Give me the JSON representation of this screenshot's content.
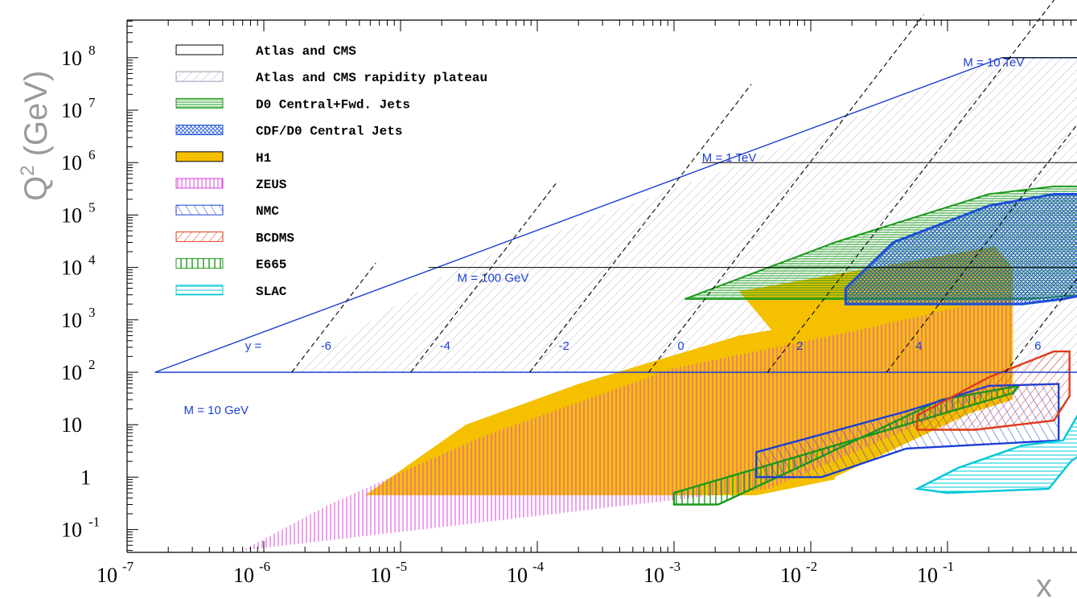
{
  "chart_data": {
    "type": "region",
    "xlabel": "x",
    "ylabel": "Q",
    "ylabel_sup": "2",
    "ylabel_unit": "(GeV)",
    "xscale": "log",
    "yscale": "log",
    "xlim": [
      1e-07,
      1
    ],
    "ylim": [
      0.03,
      300000000.0
    ],
    "x_ticks": [
      {
        "base": "10",
        "exp": "-7"
      },
      {
        "base": "10",
        "exp": "-6"
      },
      {
        "base": "10",
        "exp": "-5"
      },
      {
        "base": "10",
        "exp": "-4"
      },
      {
        "base": "10",
        "exp": "-3"
      },
      {
        "base": "10",
        "exp": "-2"
      },
      {
        "base": "10",
        "exp": "-1"
      }
    ],
    "y_ticks": [
      {
        "base": "10",
        "exp": "8"
      },
      {
        "base": "10",
        "exp": "7"
      },
      {
        "base": "10",
        "exp": "6"
      },
      {
        "base": "10",
        "exp": "5"
      },
      {
        "base": "10",
        "exp": "4"
      },
      {
        "base": "10",
        "exp": "3"
      },
      {
        "base": "10",
        "exp": "2"
      },
      {
        "base": "10",
        "exp": ""
      },
      {
        "base": "1",
        "exp": ""
      },
      {
        "base": "10",
        "exp": "-1"
      }
    ],
    "legend_position": "top-left",
    "legend": [
      {
        "label": "Atlas and CMS",
        "style": "outline",
        "color": "#000000"
      },
      {
        "label": "Atlas and CMS rapidity plateau",
        "style": "hatch-light",
        "color": "#9a9ab0"
      },
      {
        "label": "D0 Central+Fwd. Jets",
        "style": "hlines",
        "color": "#1a9a1a"
      },
      {
        "label": "CDF/D0 Central Jets",
        "style": "crosshatch",
        "color": "#1b4fd6"
      },
      {
        "label": "H1",
        "style": "solid",
        "color": "#f5c000"
      },
      {
        "label": "ZEUS",
        "style": "vlines",
        "color": "#e040e0"
      },
      {
        "label": "NMC",
        "style": "hatch-blue",
        "color": "#1b3fd6"
      },
      {
        "label": "BCDMS",
        "style": "hatch-red",
        "color": "#e03a1a"
      },
      {
        "label": "E665",
        "style": "vlines-green",
        "color": "#1a9a1a"
      },
      {
        "label": "SLAC",
        "style": "hlines-cyan",
        "color": "#00c8d8"
      }
    ],
    "mass_lines": [
      {
        "label": "M = 10 GeV",
        "Q2": 100
      },
      {
        "label": "M = 100 GeV",
        "Q2": 10000
      },
      {
        "label": "M = 1 TeV",
        "Q2": 1000000
      },
      {
        "label": "M = 10 TeV",
        "Q2": 100000000
      }
    ],
    "rapidity_label": "y =",
    "rapidity_values": [
      "-6",
      "-4",
      "-2",
      "0",
      "2",
      "4",
      "6"
    ],
    "colors": {
      "lhc": "#1b3fd6",
      "h1": "#f5c000",
      "zeus": "#e040e0",
      "d0": "#1a9a1a",
      "cdf": "#1b4fd6",
      "nmc": "#1b3fd6",
      "bcdms": "#e03a1a",
      "e665": "#1a9a1a",
      "slac": "#00c8d8"
    }
  }
}
